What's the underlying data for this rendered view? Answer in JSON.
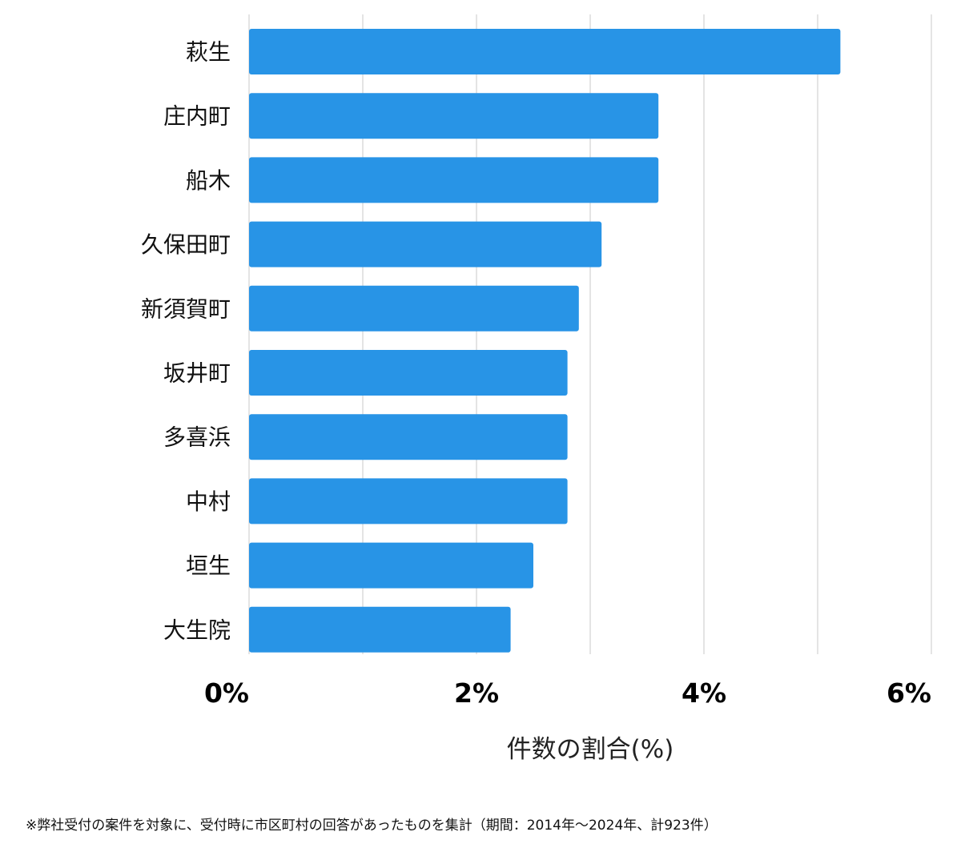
{
  "chart_data": {
    "type": "bar",
    "orientation": "horizontal",
    "categories": [
      "萩生",
      "庄内町",
      "船木",
      "久保田町",
      "新須賀町",
      "坂井町",
      "多喜浜",
      "中村",
      "垣生",
      "大生院"
    ],
    "values": [
      5.2,
      3.6,
      3.6,
      3.1,
      2.9,
      2.8,
      2.8,
      2.8,
      2.5,
      2.3
    ],
    "xlabel": "件数の割合(%)",
    "ylabel": "",
    "xlim": [
      0,
      6
    ],
    "xticks": [
      0,
      2,
      4,
      6
    ],
    "xtick_labels": [
      "0%",
      "2%",
      "4%",
      "6%"
    ],
    "grid": true,
    "bar_color": "#2894e6",
    "grid_color": "#dcdcdc"
  },
  "footnote": "※弊社受付の案件を対象に、受付時に市区町村の回答があったものを集計（期間：2014年〜2024年、計923件）"
}
